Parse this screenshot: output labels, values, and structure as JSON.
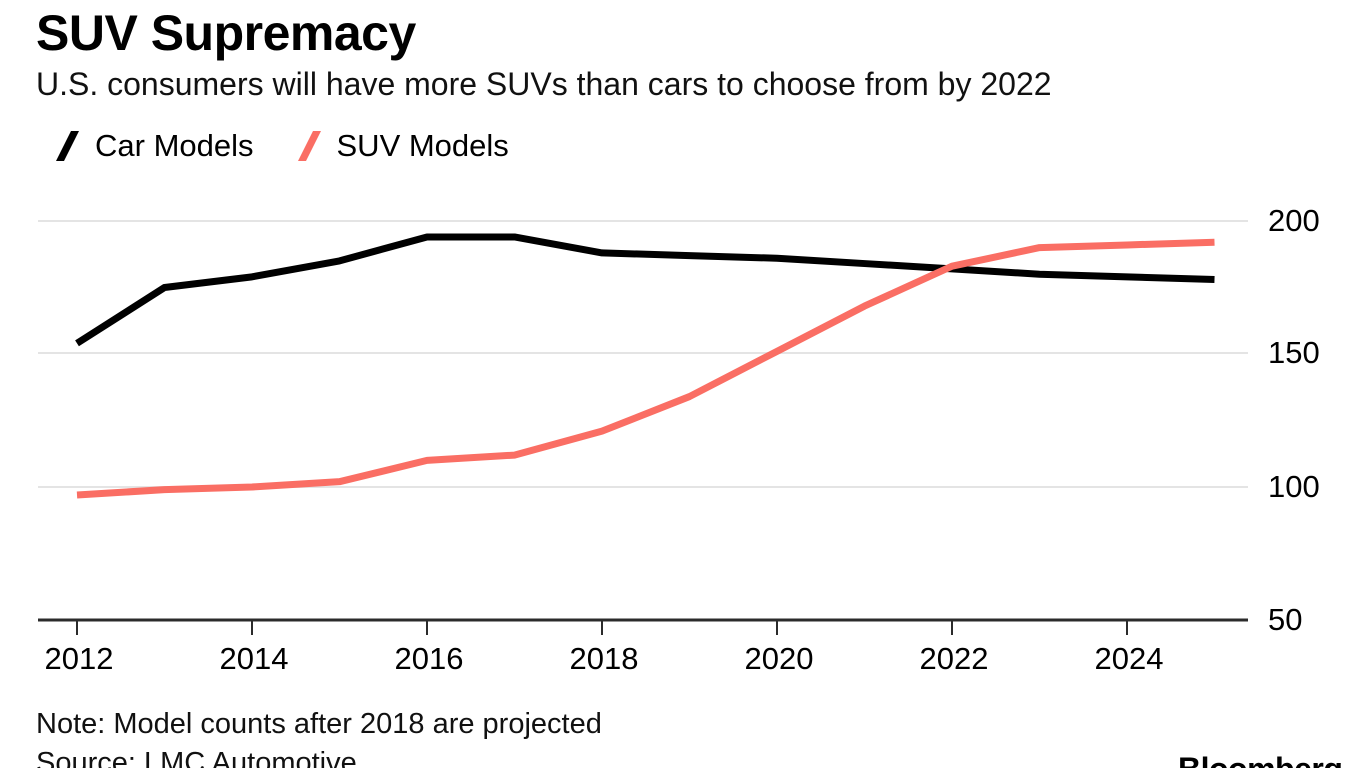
{
  "header": {
    "title": "SUV Supremacy",
    "subtitle": "U.S. consumers will have more SUVs than cars to choose from by 2022"
  },
  "legend": {
    "items": [
      {
        "label": "Car Models",
        "color": "#000000"
      },
      {
        "label": "SUV Models",
        "color": "#FA6E64"
      }
    ]
  },
  "chart_data": {
    "type": "line",
    "title": "SUV Supremacy",
    "subtitle": "U.S. consumers will have more SUVs than cars to choose from by 2022",
    "x": [
      2012,
      2013,
      2014,
      2015,
      2016,
      2017,
      2018,
      2019,
      2020,
      2021,
      2022,
      2023,
      2024,
      2025
    ],
    "series": [
      {
        "name": "Car Models",
        "color": "#000000",
        "values": [
          154,
          175,
          179,
          185,
          194,
          194,
          188,
          187,
          186,
          184,
          182,
          180,
          179,
          178
        ]
      },
      {
        "name": "SUV Models",
        "color": "#FA6E64",
        "values": [
          97,
          99,
          100,
          102,
          110,
          112,
          121,
          134,
          151,
          168,
          183,
          190,
          191,
          192
        ]
      }
    ],
    "xlim": [
      2012,
      2025
    ],
    "ylim": [
      50,
      200
    ],
    "x_tick_labels": [
      "2012",
      "2014",
      "2016",
      "2018",
      "2020",
      "2022",
      "2024"
    ],
    "y_tick_labels": [
      "200",
      "150",
      "100",
      "50"
    ],
    "grid": "horizontal-gridlines-at-100-150-200",
    "legend_position": "top-left",
    "colors": {
      "gridline": "#e4e4e4",
      "axis": "#2b2b2b",
      "background": "#ffffff"
    }
  },
  "footer": {
    "note": "Note: Model counts after 2018 are projected",
    "source": "Source: LMC Automotive",
    "brand": "Bloomberg"
  }
}
